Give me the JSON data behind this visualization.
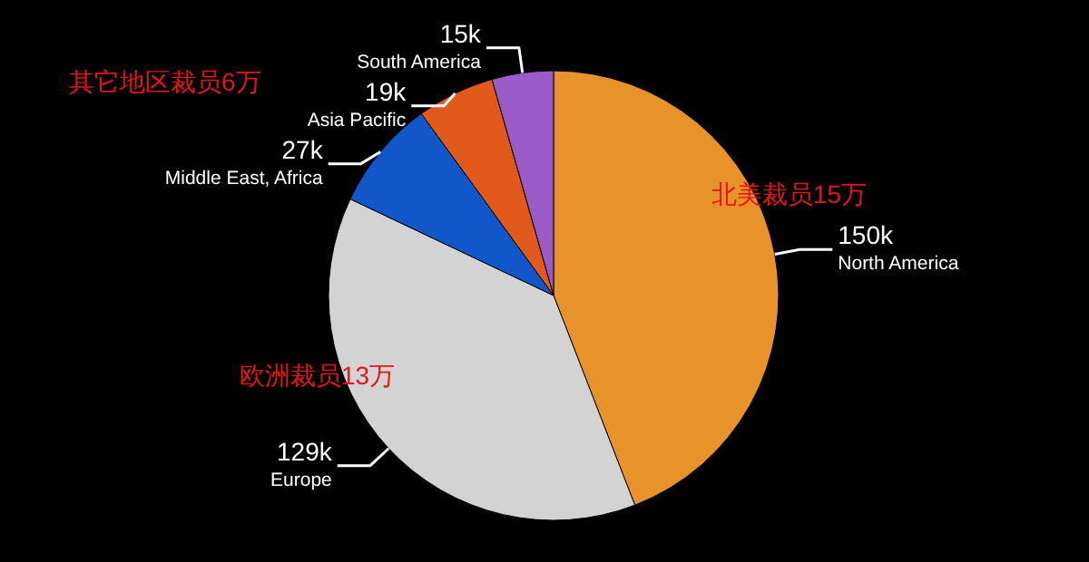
{
  "chart_data": {
    "type": "pie",
    "categories": [
      "North America",
      "Europe",
      "Middle East, Africa",
      "Asia Pacific",
      "South America"
    ],
    "values": [
      150,
      129,
      27,
      19,
      15
    ],
    "value_labels": [
      "150k",
      "129k",
      "27k",
      "19k",
      "15k"
    ],
    "colors": [
      "#e8922a",
      "#d3d3d3",
      "#1257c9",
      "#e2591c",
      "#9b5bc9"
    ],
    "annotations": [
      "北美裁员15万",
      "欧洲裁员13万",
      "其它地区裁员6万"
    ]
  }
}
